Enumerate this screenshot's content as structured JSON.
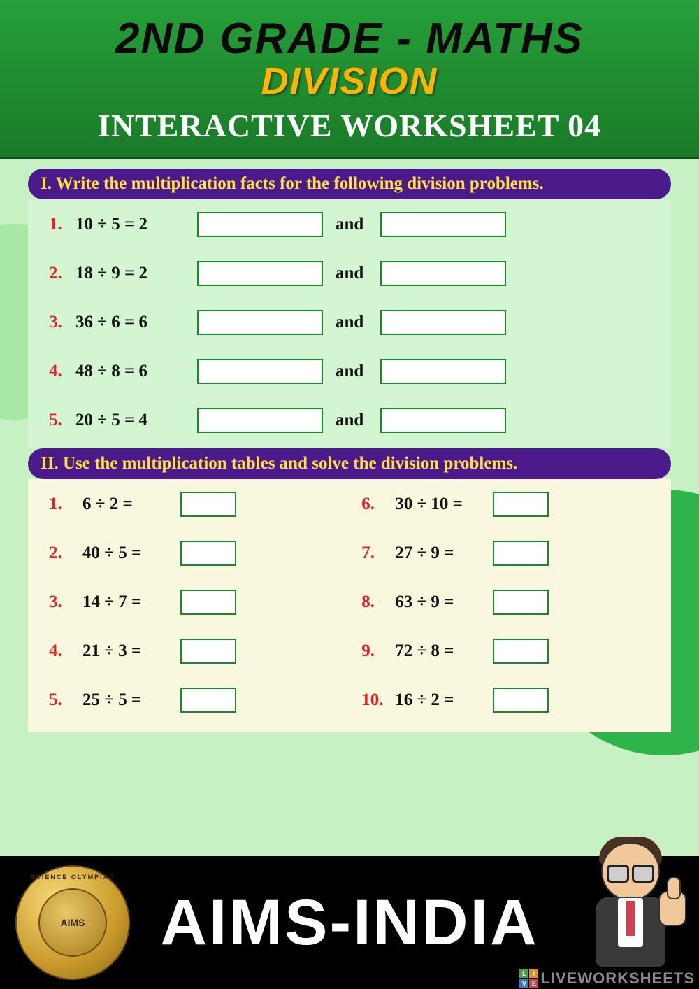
{
  "header": {
    "main": "2ND GRADE -  MATHS",
    "sub": "DIVISION",
    "worksheet": "INTERACTIVE WORKSHEET 04"
  },
  "section1": {
    "title": "I. Write the multiplication facts for the following division problems.",
    "and_label": "and",
    "problems": [
      {
        "num": "1.",
        "text": "10 ÷ 5 = 2"
      },
      {
        "num": "2.",
        "text": "18 ÷ 9 = 2"
      },
      {
        "num": "3.",
        "text": "36 ÷ 6 = 6"
      },
      {
        "num": "4.",
        "text": "48 ÷ 8 = 6"
      },
      {
        "num": "5.",
        "text": "20 ÷ 5 = 4"
      }
    ]
  },
  "section2": {
    "title": "II. Use the multiplication tables and solve the division problems.",
    "left": [
      {
        "num": "1.",
        "text": "6 ÷ 2 ="
      },
      {
        "num": "2.",
        "text": "40 ÷ 5 ="
      },
      {
        "num": "3.",
        "text": "14 ÷ 7 ="
      },
      {
        "num": "4.",
        "text": "21 ÷ 3 ="
      },
      {
        "num": "5.",
        "text": "25 ÷ 5 ="
      }
    ],
    "right": [
      {
        "num": "6.",
        "text": "30 ÷ 10 ="
      },
      {
        "num": "7.",
        "text": "27 ÷ 9 ="
      },
      {
        "num": "8.",
        "text": "63 ÷ 9 ="
      },
      {
        "num": "9.",
        "text": "72 ÷ 8 ="
      },
      {
        "num": "10.",
        "text": "16 ÷ 2 ="
      }
    ]
  },
  "footer": {
    "brand": "AIMS-INDIA",
    "medal_center": "AIMS",
    "medal_ring": "SCIENCE OLYMPIAD"
  },
  "watermark": {
    "text": "LIVEWORKSHEETS",
    "cells": [
      "L",
      "I",
      "V",
      "E"
    ],
    "cell_colors": [
      "#4aa048",
      "#d89030",
      "#3878c0",
      "#c04848"
    ]
  },
  "colors": {
    "header_bg": "#1e8a2e",
    "title_sub": "#ffb400",
    "section_title_bg": "#4a1a8a",
    "section_title_fg": "#ffe040",
    "sec1_bg": "#d4f5d2",
    "sec2_bg": "#f9f8df",
    "problem_num": "#e62020",
    "input_border": "#1a8a2e",
    "footer_bg": "#000000",
    "footer_text": "#ffffff"
  }
}
